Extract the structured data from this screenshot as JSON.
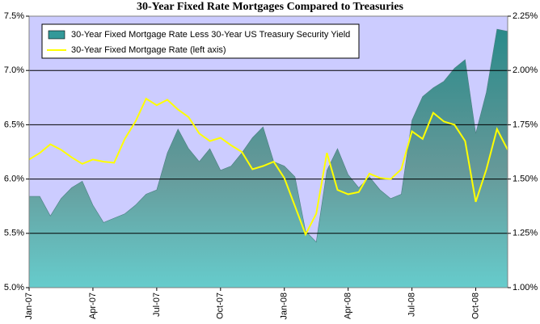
{
  "chart_data": {
    "type": "area-line",
    "title": "30-Year Fixed Rate Mortgages Compared to Treasuries",
    "categories": [
      "Jan-07",
      null,
      null,
      null,
      null,
      null,
      "Apr-07",
      null,
      null,
      null,
      null,
      null,
      "Jul-07",
      null,
      null,
      null,
      null,
      null,
      "Oct-07",
      null,
      null,
      null,
      null,
      null,
      "Jan-08",
      null,
      null,
      null,
      null,
      null,
      "Apr-08",
      null,
      null,
      null,
      null,
      null,
      "Jul-08",
      null,
      null,
      null,
      null,
      null,
      "Oct-08",
      null,
      null,
      null
    ],
    "series": [
      {
        "name": "30-Year Fixed Mortgage Rate Less 30-Year US Treasury Security Yield",
        "color": "#339999",
        "axis": "y2",
        "values": [
          1.42,
          1.42,
          1.33,
          1.41,
          1.46,
          1.49,
          1.38,
          1.3,
          1.32,
          1.34,
          1.38,
          1.43,
          1.45,
          1.62,
          1.73,
          1.64,
          1.58,
          1.64,
          1.54,
          1.56,
          1.62,
          1.69,
          1.74,
          1.58,
          1.56,
          1.51,
          1.26,
          1.21,
          1.54,
          1.64,
          1.52,
          1.46,
          1.51,
          1.45,
          1.41,
          1.43,
          1.77,
          1.88,
          1.92,
          1.95,
          2.01,
          2.05,
          1.71,
          1.9,
          2.19,
          2.18
        ]
      },
      {
        "name": "30-Year Fixed Mortgage Rate (left axis)",
        "color": "#ffff00",
        "values": [
          6.18,
          6.24,
          6.32,
          6.27,
          6.2,
          6.14,
          6.18,
          6.16,
          6.15,
          6.37,
          6.53,
          6.74,
          6.68,
          6.73,
          6.64,
          6.57,
          6.42,
          6.35,
          6.38,
          6.31,
          6.25,
          6.09,
          6.12,
          6.16,
          6.01,
          5.75,
          5.49,
          5.68,
          6.24,
          5.9,
          5.86,
          5.88,
          6.05,
          6.01,
          6.0,
          6.09,
          6.44,
          6.37,
          6.61,
          6.53,
          6.5,
          6.35,
          5.79,
          6.09,
          6.46,
          6.27
        ]
      }
    ],
    "ylim": [
      5.0,
      7.5
    ],
    "yticks": [
      {
        "value": 5.0,
        "label": "5.0%"
      },
      {
        "value": 5.5,
        "label": "5.5%"
      },
      {
        "value": 6.0,
        "label": "6.0%"
      },
      {
        "value": 6.5,
        "label": "6.5%"
      },
      {
        "value": 7.0,
        "label": "7.0%"
      },
      {
        "value": 7.5,
        "label": "7.5%"
      }
    ],
    "y2lim": [
      1.0,
      2.25
    ],
    "y2ticks": [
      {
        "value": 1.0,
        "label": "1.00%"
      },
      {
        "value": 1.25,
        "label": "1.25%"
      },
      {
        "value": 1.5,
        "label": "1.50%"
      },
      {
        "value": 1.75,
        "label": "1.75%"
      },
      {
        "value": 2.0,
        "label": "2.00%"
      },
      {
        "value": 2.25,
        "label": "2.25%"
      }
    ],
    "grid": true,
    "legend": "top-left",
    "background": "#ccccff"
  }
}
